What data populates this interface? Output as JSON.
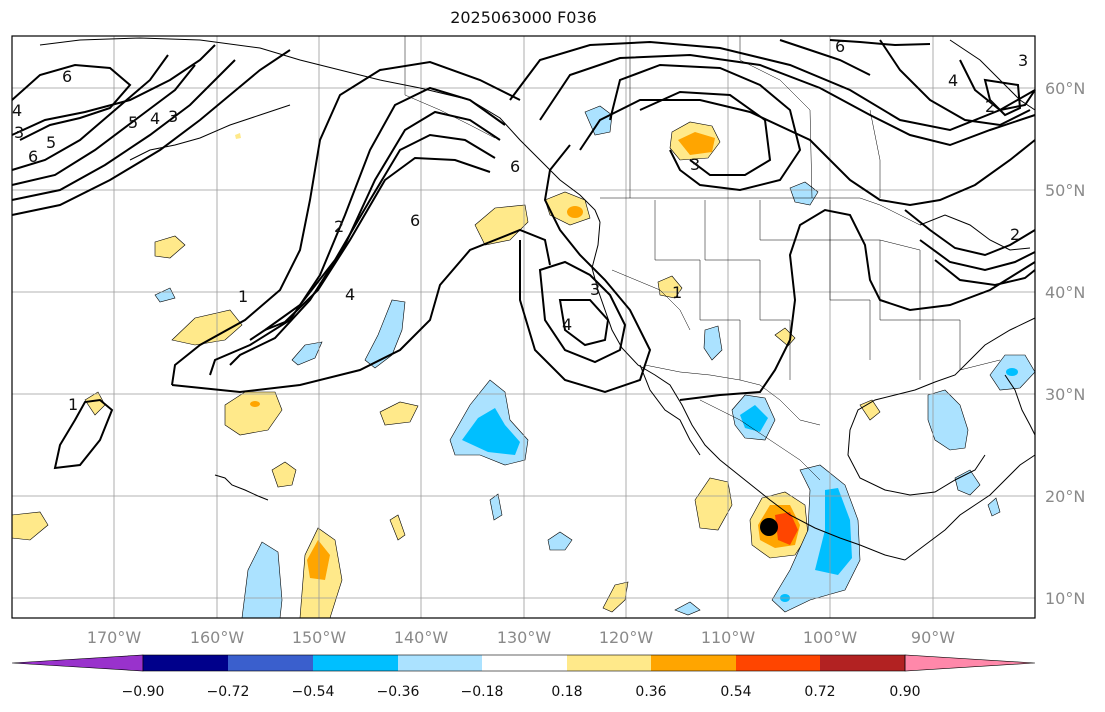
{
  "title": "2025063000 F036",
  "lon_labels": [
    "170°W",
    "160°W",
    "150°W",
    "140°W",
    "130°W",
    "120°W",
    "110°W",
    "100°W",
    "90°W"
  ],
  "lat_labels": [
    "60°N",
    "50°N",
    "40°N",
    "30°N",
    "20°N",
    "10°N"
  ],
  "contour_labels": [
    "6",
    "5",
    "4",
    "3",
    "6",
    "5",
    "4",
    "3",
    "6",
    "1",
    "2",
    "4",
    "6",
    "1",
    "3",
    "4",
    "3",
    "1",
    "6",
    "4",
    "3",
    "2",
    "2"
  ],
  "colorbar": {
    "ticks": [
      "−0.90",
      "−0.72",
      "−0.54",
      "−0.36",
      "−0.18",
      "0.18",
      "0.36",
      "0.54",
      "0.72",
      "0.90"
    ],
    "colors": [
      "#9932cc",
      "#00008b",
      "#3a5fcd",
      "#00bfff",
      "#abe2ff",
      "#ffffff",
      "#ffe98a",
      "#ffa500",
      "#ff4500",
      "#b22222",
      "#ff88aa"
    ]
  },
  "storm_marker_color": "#000000"
}
